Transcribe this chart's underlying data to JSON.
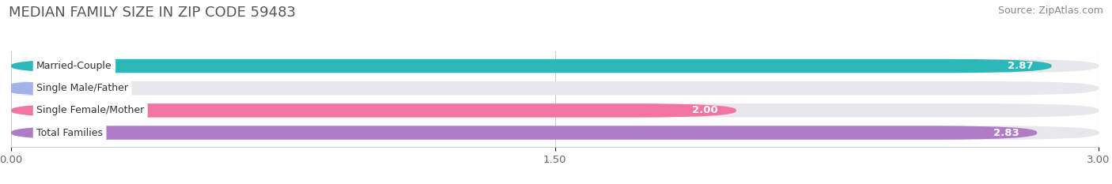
{
  "title": "MEDIAN FAMILY SIZE IN ZIP CODE 59483",
  "source": "Source: ZipAtlas.com",
  "categories": [
    "Married-Couple",
    "Single Male/Father",
    "Single Female/Mother",
    "Total Families"
  ],
  "values": [
    2.87,
    0.0,
    2.0,
    2.83
  ],
  "bar_colors": [
    "#2ab8b8",
    "#a0b4e8",
    "#f075a0",
    "#b07cc6"
  ],
  "bar_bg_color": "#e8e8ec",
  "xlim": [
    0,
    3.0
  ],
  "xticks": [
    0.0,
    1.5,
    3.0
  ],
  "xtick_labels": [
    "0.00",
    "1.50",
    "3.00"
  ],
  "background_color": "#ffffff",
  "title_fontsize": 13,
  "source_fontsize": 9,
  "bar_height": 0.62,
  "rounding_size": 0.28,
  "zero_bar_width": 0.12
}
